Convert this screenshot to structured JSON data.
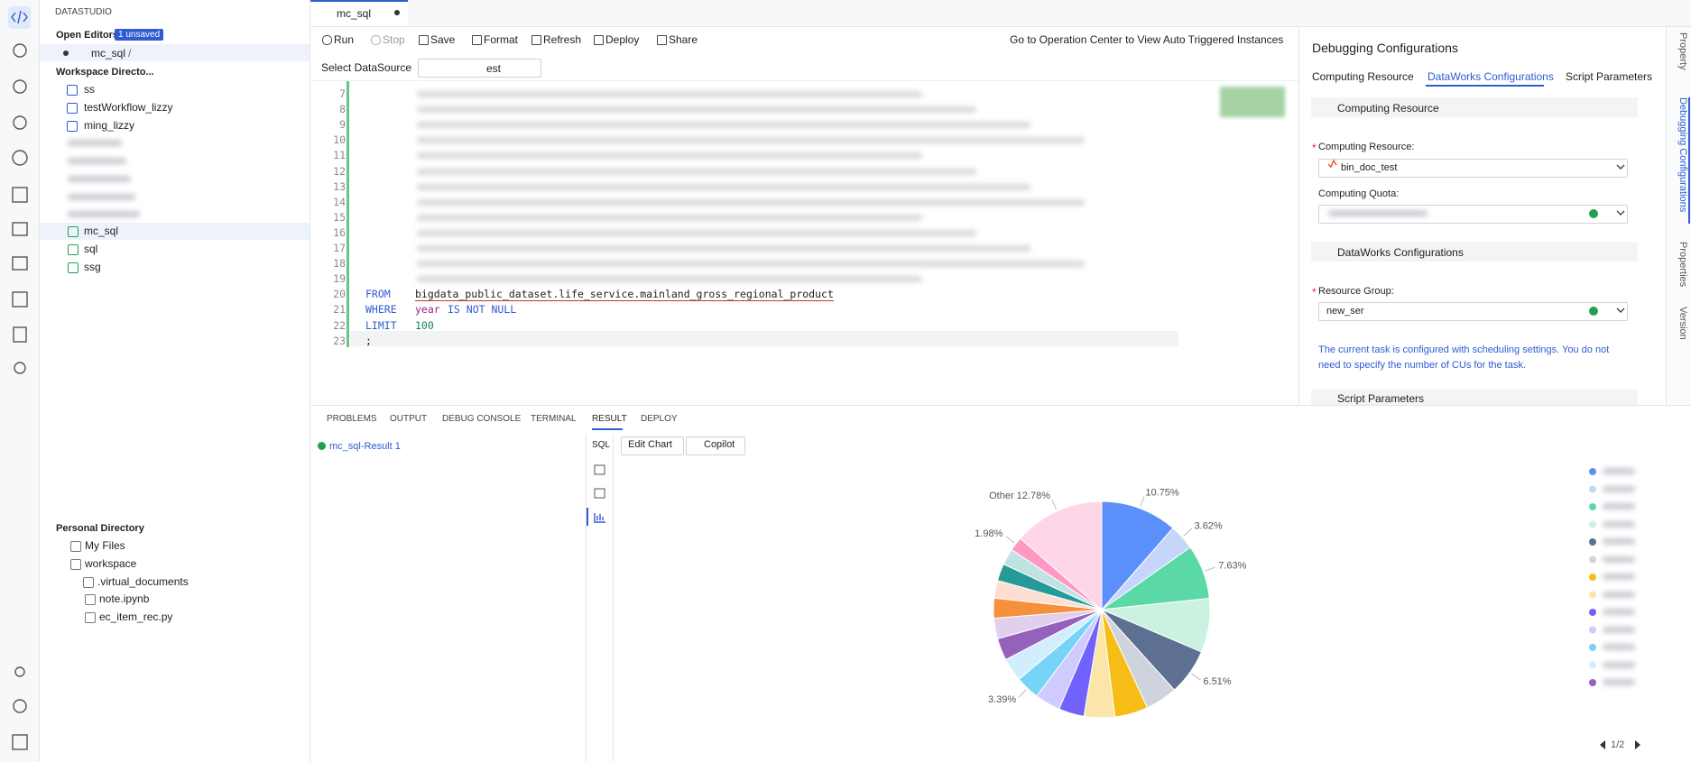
{
  "sidebar": {
    "title": "DATASTUDIO",
    "open_editors": {
      "label": "Open Editors",
      "badge": "1 unsaved",
      "items": [
        {
          "name": "mc_sql",
          "path": "/"
        }
      ]
    },
    "workspace": {
      "label": "Workspace Directo...",
      "items": [
        "ss",
        "testWorkflow_lizzy",
        "ming_lizzy",
        "mc_sql",
        "sql",
        "ssg"
      ]
    },
    "personal": {
      "label": "Personal Directory",
      "items": [
        "My Files",
        "workspace",
        ".virtual_documents",
        "note.ipynb",
        "ec_item_rec.py"
      ]
    }
  },
  "editor": {
    "tab": "mc_sql",
    "toolbar": [
      "Run",
      "Stop",
      "Save",
      "Format",
      "Refresh",
      "Deploy",
      "Share"
    ],
    "operation_link": "Go to Operation Center to View Auto Triggered Instances",
    "datasource_label": "Select DataSource",
    "datasource_value": "est",
    "lines": [
      {
        "number": 7
      },
      {
        "number": 8
      },
      {
        "number": 9
      },
      {
        "number": 10
      },
      {
        "number": 11
      },
      {
        "number": 12
      },
      {
        "number": 13
      },
      {
        "number": 14
      },
      {
        "number": 15
      },
      {
        "number": 16
      },
      {
        "number": 17
      },
      {
        "number": 18
      },
      {
        "number": 19
      },
      {
        "number": 20,
        "tokens": [
          {
            "text": "FROM",
            "color": "#2f5bd3"
          },
          {
            "text": "bigdata_public_dataset.life_service.mainland_gross_regional_product",
            "color": "#1f1f1f"
          }
        ]
      },
      {
        "number": 21,
        "tokens": [
          {
            "text": "WHERE",
            "color": "#2f5bd3"
          },
          {
            "text": "year",
            "color": "#9b2393"
          },
          {
            "text": "IS NOT NULL",
            "color": "#2f5bd3"
          }
        ]
      },
      {
        "number": 22,
        "tokens": [
          {
            "text": "LIMIT",
            "color": "#2f5bd3"
          },
          {
            "text": "100",
            "color": "#098658"
          }
        ]
      },
      {
        "number": 23,
        "tokens": [
          {
            "text": ";",
            "color": "#1f1f1f"
          }
        ]
      }
    ]
  },
  "right_panel": {
    "title": "Debugging Configurations",
    "tabs": [
      "Computing Resource",
      "DataWorks Configurations",
      "Script Parameters"
    ],
    "required_mark": "*",
    "computing_section": "Computing Resource",
    "computing_resource_label": "Computing Resource:",
    "computing_resource_value": "bin_doc_test",
    "quota_label": "Computing Quota:",
    "dataworks_section": "DataWorks Configurations",
    "resource_group_label": "Resource Group:",
    "resource_group_value": "new_ser",
    "note": "The current task is configured with scheduling settings. You do not need to specify the number of CUs for the task.",
    "script_section": "Script Parameters"
  },
  "vertical_tabs": [
    "Property",
    "Debugging Configurations",
    "Properties",
    "Version"
  ],
  "panel": {
    "tabs": [
      "PROBLEMS",
      "OUTPUT",
      "DEBUG CONSOLE",
      "TERMINAL",
      "RESULT",
      "DEPLOY"
    ],
    "result_item": "mc_sql-Result 1",
    "mode_label": "SQL",
    "buttons": [
      "Edit Chart",
      "Copilot"
    ],
    "pager": "1/2",
    "chart": {
      "type": "pie",
      "values": [
        10.75,
        3.62,
        7.63,
        7.59,
        6.51,
        4.5,
        4.7,
        4.31,
        3.6,
        3.58,
        3.39,
        3.3,
        3.1,
        2.9,
        2.8,
        2.5,
        2.4,
        2.3,
        1.98,
        12.78
      ],
      "value_labels": [
        "10.75%",
        "3.62%",
        "7.63%",
        null,
        "6.51%",
        null,
        null,
        null,
        null,
        null,
        "3.39%",
        null,
        null,
        null,
        null,
        null,
        null,
        null,
        "1.98%",
        "Other 12.78%"
      ],
      "colors": [
        "#5b8ff9",
        "#c6d6fa",
        "#5ad8a6",
        "#c9f2e1",
        "#5d7092",
        "#ced4de",
        "#f6bd16",
        "#fce5a8",
        "#7262fd",
        "#d0cbfe",
        "#78d3f8",
        "#d2eefd",
        "#9661bc",
        "#e0d0ed",
        "#f6903d",
        "#fdded0",
        "#269a99",
        "#bfe2e2",
        "#ff99c3",
        "#ffd6e7"
      ]
    }
  }
}
